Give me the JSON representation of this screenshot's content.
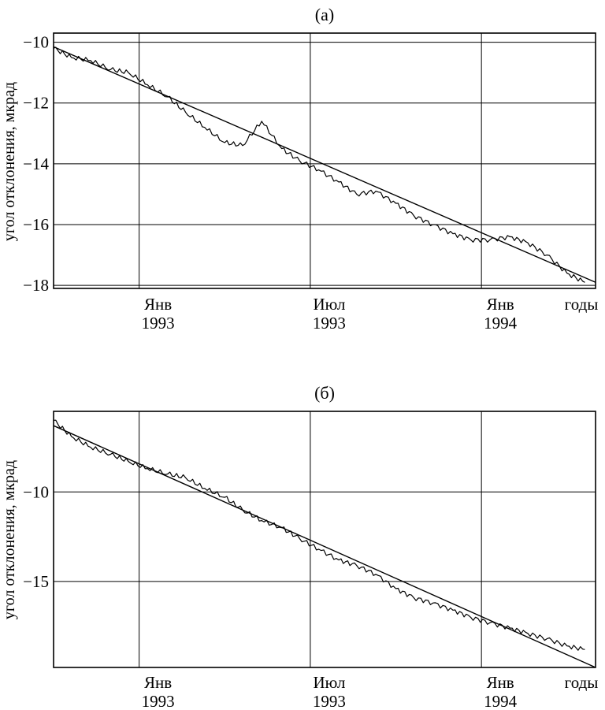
{
  "chart_data": [
    {
      "type": "line",
      "panel_label": "(a)",
      "ylabel": "угол отклонения, мкрад",
      "yticks": [
        "−10",
        "−12",
        "−14",
        "−16",
        "−18"
      ],
      "ytick_values": [
        -10,
        -12,
        -14,
        -16,
        -18
      ],
      "ylim": [
        -18.1,
        -9.7
      ],
      "x_ticks": [
        {
          "month": "Янв",
          "year": "1993"
        },
        {
          "month": "Июл",
          "year": "1993"
        },
        {
          "month": "Янв",
          "year": "1994"
        }
      ],
      "x_unit_label": "годы",
      "xlim": [
        "1992-10",
        "1994-05"
      ],
      "grid": true,
      "series": [
        {
          "x": [
            "1992-10-01",
            "1992-10-20",
            "1992-11-10",
            "1992-12-01",
            "1992-12-20",
            "1993-01-10",
            "1993-02-01",
            "1993-02-20",
            "1993-03-10",
            "1993-04-01",
            "1993-04-20",
            "1993-05-10",
            "1993-06-01",
            "1993-06-20",
            "1993-07-10",
            "1993-08-01",
            "1993-08-20",
            "1993-09-10",
            "1993-10-01",
            "1993-10-20",
            "1993-11-10",
            "1993-12-01",
            "1993-12-20",
            "1994-01-10",
            "1994-02-01",
            "1994-02-20",
            "1994-03-10",
            "1994-04-01",
            "1994-04-20"
          ],
          "values": [
            -10.2,
            -10.5,
            -10.6,
            -10.9,
            -11.0,
            -11.4,
            -11.8,
            -12.3,
            -12.8,
            -13.3,
            -13.4,
            -12.6,
            -13.5,
            -13.9,
            -14.2,
            -14.6,
            -15.0,
            -14.9,
            -15.3,
            -15.7,
            -16.0,
            -16.3,
            -16.5,
            -16.5,
            -16.4,
            -16.6,
            -17.0,
            -17.6,
            -17.9
          ]
        },
        {
          "x": [
            "1992-10-01",
            "1994-05-01"
          ],
          "values": [
            -10.15,
            -17.9
          ]
        }
      ]
    },
    {
      "type": "line",
      "panel_label": "(б)",
      "ylabel": "угол отклонения, мкрад",
      "yticks": [
        "−10",
        "−15"
      ],
      "ytick_values": [
        -10,
        -15
      ],
      "ylim": [
        -19.8,
        -5.5
      ],
      "x_ticks": [
        {
          "month": "Янв",
          "year": "1993"
        },
        {
          "month": "Июл",
          "year": "1993"
        },
        {
          "month": "Янв",
          "year": "1994"
        }
      ],
      "x_unit_label": "годы",
      "xlim": [
        "1992-10",
        "1994-05"
      ],
      "grid": true,
      "series": [
        {
          "x": [
            "1992-10-01",
            "1992-10-20",
            "1992-11-10",
            "1992-12-01",
            "1992-12-20",
            "1993-01-10",
            "1993-02-01",
            "1993-02-20",
            "1993-03-10",
            "1993-04-01",
            "1993-04-20",
            "1993-05-10",
            "1993-06-01",
            "1993-06-20",
            "1993-07-10",
            "1993-08-01",
            "1993-08-20",
            "1993-09-10",
            "1993-10-01",
            "1993-10-20",
            "1993-11-10",
            "1993-12-01",
            "1993-12-20",
            "1994-01-10",
            "1994-02-01",
            "1994-02-20",
            "1994-03-10",
            "1994-04-01",
            "1994-04-20"
          ],
          "values": [
            -6.0,
            -6.9,
            -7.5,
            -7.9,
            -8.3,
            -8.7,
            -9.0,
            -9.2,
            -9.8,
            -10.3,
            -11.0,
            -11.6,
            -12.0,
            -12.6,
            -13.2,
            -13.8,
            -14.1,
            -14.6,
            -15.4,
            -15.9,
            -16.2,
            -16.6,
            -17.0,
            -17.3,
            -17.6,
            -17.9,
            -18.2,
            -18.6,
            -18.8
          ]
        },
        {
          "x": [
            "1992-10-01",
            "1994-05-01"
          ],
          "values": [
            -6.3,
            -19.8
          ]
        }
      ]
    }
  ]
}
